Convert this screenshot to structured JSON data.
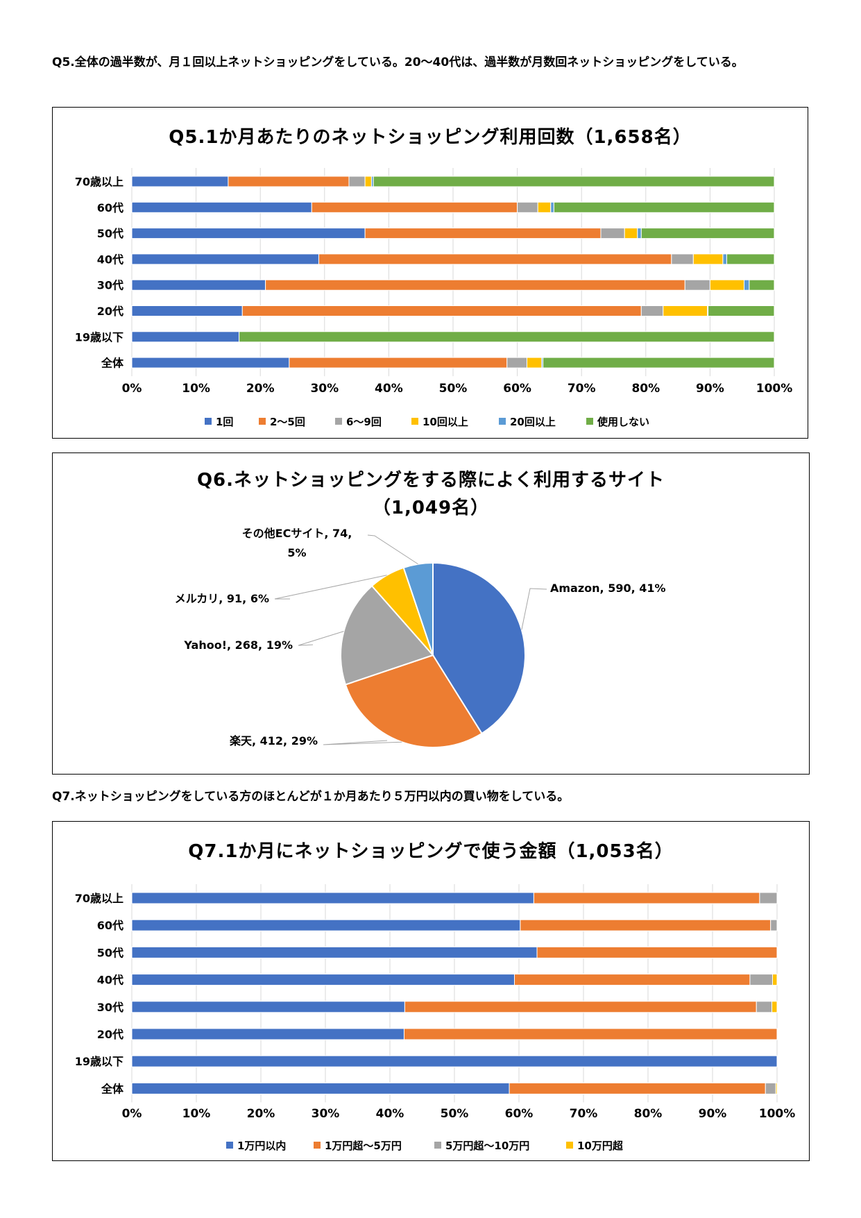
{
  "texts": {
    "q5_paragraph": "Q5.全体の過半数が、月１回以上ネットショッピングをしている。20～40代は、過半数が月数回ネットショッピングをしている。",
    "q7_paragraph": "Q7.ネットショッピングをしている方のほとんどが１か月あたり５万円以内の買い物をしている。"
  },
  "chart_data": [
    {
      "type": "bar",
      "orientation": "horizontal",
      "stacked": true,
      "percent": true,
      "title": "Q5.1か月あたりのネットショッピング利用回数（1,658名）",
      "categories": [
        "70歳以上",
        "60代",
        "50代",
        "40代",
        "30代",
        "20代",
        "19歳以下",
        "全体"
      ],
      "xlim": [
        0,
        100
      ],
      "xticks": [
        "0%",
        "10%",
        "20%",
        "30%",
        "40%",
        "50%",
        "60%",
        "70%",
        "80%",
        "90%",
        "100%"
      ],
      "legend_position": "bottom",
      "series": [
        {
          "name": "1回",
          "color": "#4472C4",
          "values": [
            15,
            28,
            36.3,
            29.1,
            20.8,
            17.2,
            16.7,
            24.5
          ]
        },
        {
          "name": "2～5回",
          "color": "#ED7D31",
          "values": [
            18.8,
            32,
            36.7,
            54.9,
            65.3,
            62.1,
            0,
            33.9
          ]
        },
        {
          "name": "6～9回",
          "color": "#A5A5A5",
          "values": [
            2.5,
            3.2,
            3.7,
            3.4,
            3.9,
            3.4,
            0,
            3.1
          ]
        },
        {
          "name": "10回以上",
          "color": "#FFC000",
          "values": [
            1.0,
            2.0,
            2.0,
            4.6,
            5.3,
            6.9,
            0,
            2.3
          ]
        },
        {
          "name": "20回以上",
          "color": "#5B9BD5",
          "values": [
            0.3,
            0.5,
            0.6,
            0.6,
            0.8,
            0.1,
            0,
            0.2
          ]
        },
        {
          "name": "使用しない",
          "color": "#70AD47",
          "values": [
            62.4,
            34.3,
            20.7,
            7.4,
            3.9,
            10.3,
            83.3,
            36.0
          ]
        }
      ]
    },
    {
      "type": "pie",
      "title_line1": "Q6.ネットショッピングをする際によく利用するサイト",
      "title_line2": "（1,049名）",
      "slices": [
        {
          "name": "Amazon",
          "value": 590,
          "percent": 41,
          "color": "#4472C4",
          "label": "Amazon, 590, 41%"
        },
        {
          "name": "楽天",
          "value": 412,
          "percent": 29,
          "color": "#ED7D31",
          "label": "楽天, 412, 29%"
        },
        {
          "name": "Yahoo!",
          "value": 268,
          "percent": 19,
          "color": "#A5A5A5",
          "label": "Yahoo!, 268, 19%"
        },
        {
          "name": "メルカリ",
          "value": 91,
          "percent": 6,
          "color": "#FFC000",
          "label": "メルカリ, 91, 6%"
        },
        {
          "name": "その他ECサイト",
          "value": 74,
          "percent": 5,
          "color": "#5B9BD5",
          "label1": "その他ECサイト, 74,",
          "label2": "5%"
        }
      ]
    },
    {
      "type": "bar",
      "orientation": "horizontal",
      "stacked": true,
      "percent": true,
      "title": "Q7.1か月にネットショッピングで使う金額（1,053名）",
      "categories": [
        "70歳以上",
        "60代",
        "50代",
        "40代",
        "30代",
        "20代",
        "19歳以下",
        "全体"
      ],
      "xlim": [
        0,
        100
      ],
      "xticks": [
        "0%",
        "10%",
        "20%",
        "30%",
        "40%",
        "50%",
        "60%",
        "70%",
        "80%",
        "90%",
        "100%"
      ],
      "legend_position": "bottom",
      "series": [
        {
          "name": "1万円以内",
          "color": "#4472C4",
          "values": [
            62.3,
            60.2,
            62.8,
            59.3,
            42.3,
            42.2,
            100,
            58.5
          ]
        },
        {
          "name": "1万円超～5万円",
          "color": "#ED7D31",
          "values": [
            35.0,
            38.8,
            37.2,
            36.5,
            54.5,
            57.8,
            0,
            39.7
          ]
        },
        {
          "name": "5万円超～10万円",
          "color": "#A5A5A5",
          "values": [
            2.7,
            1.0,
            0,
            3.5,
            2.4,
            0,
            0,
            1.6
          ]
        },
        {
          "name": "10万円超",
          "color": "#FFC000",
          "values": [
            0,
            0,
            0,
            0.7,
            0.8,
            0,
            0,
            0.2
          ]
        }
      ]
    }
  ]
}
